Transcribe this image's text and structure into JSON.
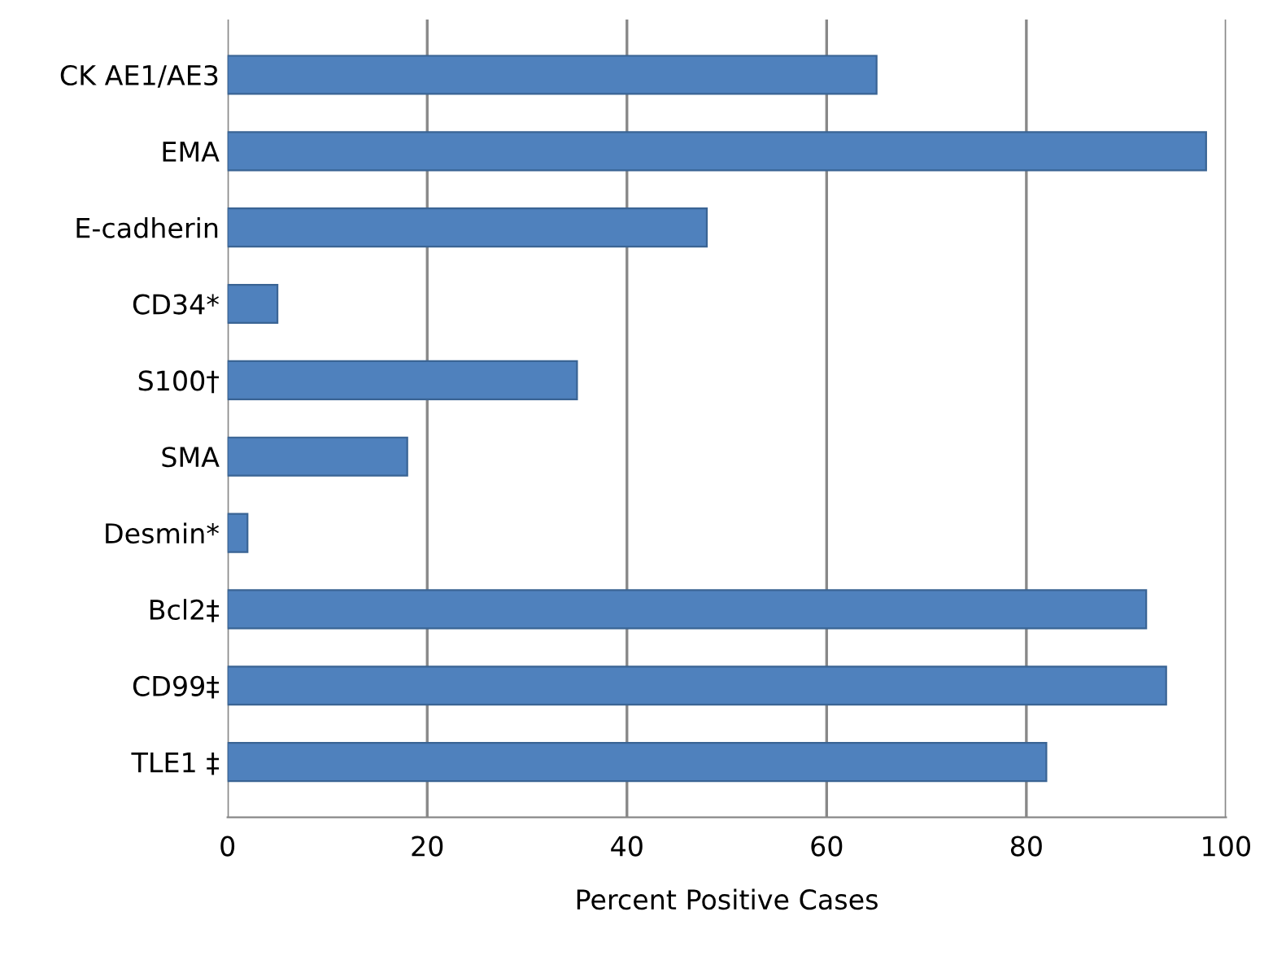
{
  "chart_data": {
    "type": "bar",
    "orientation": "horizontal",
    "xlabel": "Percent Positive Cases",
    "categories": [
      "CK AE1/AE3",
      "EMA",
      "E-cadherin",
      "CD34*",
      "S100†",
      "SMA",
      "Desmin*",
      "Bcl2‡",
      "CD99‡",
      "TLE1 ‡"
    ],
    "values": [
      65,
      98,
      48,
      5,
      35,
      18,
      2,
      92,
      94,
      82
    ],
    "color": "#4f81bd",
    "xlim": [
      0,
      100
    ],
    "xticks": [
      0,
      20,
      40,
      60,
      80,
      100
    ],
    "grid": "x",
    "legend": false
  }
}
